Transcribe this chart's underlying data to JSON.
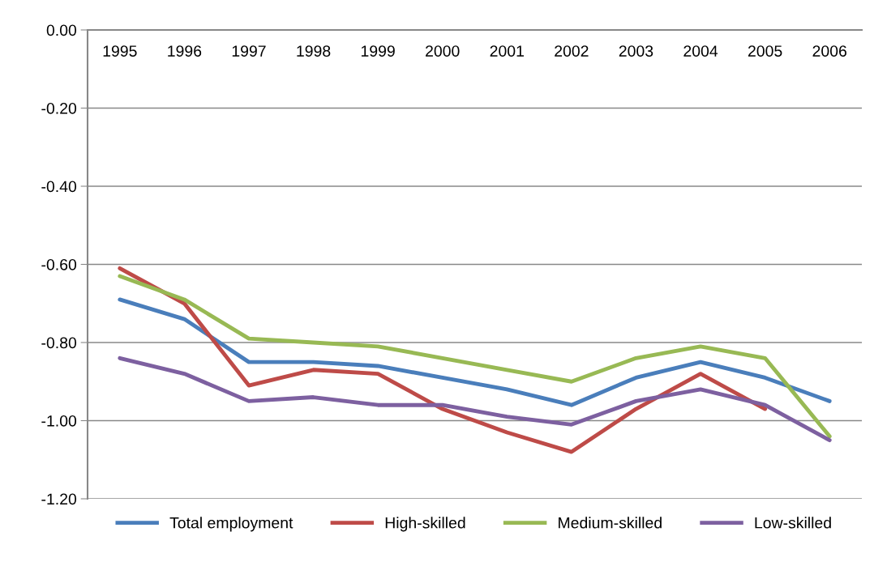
{
  "chart_data": {
    "type": "line",
    "categories": [
      "1995",
      "1996",
      "1997",
      "1998",
      "1999",
      "2000",
      "2001",
      "2002",
      "2003",
      "2004",
      "2005",
      "2006"
    ],
    "series": [
      {
        "name": "Total employment",
        "color": "#4a7ebb",
        "values": [
          -0.69,
          -0.74,
          -0.85,
          -0.85,
          -0.86,
          -0.89,
          -0.92,
          -0.96,
          -0.89,
          -0.85,
          -0.89,
          -0.95
        ]
      },
      {
        "name": "High-skilled",
        "color": "#be4b48",
        "values": [
          -0.61,
          -0.7,
          -0.91,
          -0.87,
          -0.88,
          -0.97,
          -1.03,
          -1.08,
          -0.97,
          -0.88,
          -0.97,
          null
        ]
      },
      {
        "name": "Medium-skilled",
        "color": "#98b954",
        "values": [
          -0.63,
          -0.69,
          -0.79,
          -0.8,
          -0.81,
          -0.84,
          -0.87,
          -0.9,
          -0.84,
          -0.81,
          -0.84,
          -1.04
        ]
      },
      {
        "name": "Low-skilled",
        "color": "#7d60a0",
        "values": [
          -0.84,
          -0.88,
          -0.95,
          -0.94,
          -0.96,
          -0.96,
          -0.99,
          -1.01,
          -0.95,
          -0.92,
          -0.96,
          -1.05
        ]
      }
    ],
    "ylim": [
      -1.2,
      0
    ],
    "yticks": [
      {
        "value": 0,
        "label": "0.00"
      },
      {
        "value": -0.2,
        "label": "-0.20"
      },
      {
        "value": -0.4,
        "label": "-0.40"
      },
      {
        "value": -0.6,
        "label": "-0.60"
      },
      {
        "value": -0.8,
        "label": "-0.80"
      },
      {
        "value": -1.0,
        "label": "-1.00"
      },
      {
        "value": -1.2,
        "label": "-1.20"
      }
    ],
    "grid": "y",
    "legend": "bottom",
    "marker": "none",
    "line_style": "solid"
  }
}
